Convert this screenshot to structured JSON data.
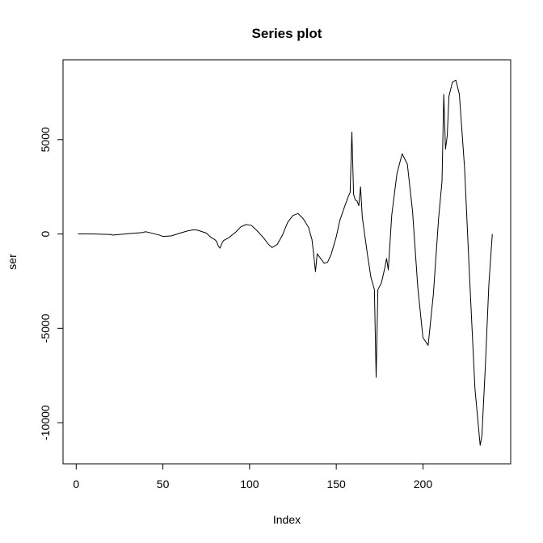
{
  "chart_data": {
    "type": "line",
    "title": "Series plot",
    "xlabel": "Index",
    "ylabel": "ser",
    "xlim": [
      -7.6,
      250.6
    ],
    "ylim": [
      -12180,
      9230
    ],
    "x_ticks": [
      0,
      50,
      100,
      150,
      200
    ],
    "y_ticks": [
      -10000,
      -5000,
      0,
      5000
    ],
    "grid": false,
    "series": [
      {
        "x": [
          1,
          10,
          20,
          21,
          30,
          38,
          40,
          42,
          45,
          48,
          50,
          55,
          60,
          65,
          68,
          70,
          75,
          78,
          80,
          81,
          82,
          83,
          84,
          85,
          88,
          92,
          95,
          98,
          101,
          104,
          108,
          111,
          113,
          116,
          119,
          122,
          125,
          128,
          131,
          134,
          136,
          137,
          138,
          139,
          141,
          143,
          145,
          147,
          150,
          152,
          155,
          157,
          158,
          159,
          160,
          161,
          162,
          163,
          164,
          165,
          168,
          170,
          172,
          173,
          174,
          176,
          178,
          179,
          180,
          182,
          185,
          188,
          191,
          194,
          197,
          200,
          203,
          206,
          209,
          211,
          212,
          213,
          214,
          215,
          217,
          219,
          221,
          224,
          227,
          230,
          233,
          234,
          236,
          238,
          240
        ],
        "y": [
          0,
          0,
          -30,
          -60,
          20,
          70,
          120,
          80,
          10,
          -60,
          -130,
          -100,
          50,
          180,
          220,
          200,
          50,
          -200,
          -300,
          -400,
          -650,
          -750,
          -500,
          -350,
          -200,
          100,
          380,
          500,
          460,
          200,
          -200,
          -560,
          -720,
          -550,
          -50,
          620,
          980,
          1080,
          800,
          350,
          -300,
          -1100,
          -2000,
          -1050,
          -1300,
          -1550,
          -1500,
          -1100,
          -150,
          700,
          1500,
          2000,
          2200,
          5400,
          2100,
          1800,
          1750,
          1500,
          2500,
          900,
          -1100,
          -2300,
          -2950,
          -7600,
          -2950,
          -2600,
          -1800,
          -1300,
          -1900,
          1000,
          3200,
          4250,
          3700,
          1200,
          -2800,
          -5500,
          -5900,
          -3200,
          800,
          2800,
          7400,
          4500,
          5200,
          7300,
          8050,
          8150,
          7400,
          3500,
          -2500,
          -8200,
          -11200,
          -10700,
          -7000,
          -2700,
          0
        ]
      }
    ]
  }
}
